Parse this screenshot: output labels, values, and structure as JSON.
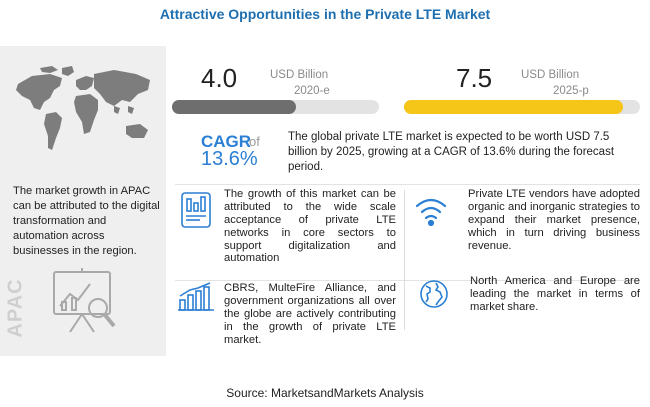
{
  "header": {
    "title": "Attractive Opportunities in the Private LTE Market"
  },
  "left": {
    "description": "The market growth in APAC can be attributed to the digital transformation and automation across businesses in the region.",
    "region_label": "APAC"
  },
  "value_2020": {
    "value": "4.0",
    "unit": "USD Billion",
    "period": "2020-e",
    "bar_fill_fraction": 0.6,
    "bar_color": "#6e6e6e"
  },
  "value_2025": {
    "value": "7.5",
    "unit": "USD Billion",
    "period": "2025-p",
    "bar_fill_fraction": 0.93,
    "bar_color": "#f5c518"
  },
  "cagr": {
    "label": "CAGR",
    "of": "of",
    "value": "13.6%",
    "summary": "The global private LTE market is expected to be worth USD 7.5 billion by 2025, growing at a CAGR of 13.6% during the forecast period."
  },
  "points": [
    {
      "icon": "chart-tablet-icon",
      "text": "The growth of this market can be attributed to the wide scale acceptance of private LTE networks in core sectors to support digitalization and automation"
    },
    {
      "icon": "wifi-icon",
      "text": "Private LTE vendors have adopted organic and inorganic strategies to expand their market presence, which in turn driving  business revenue."
    },
    {
      "icon": "growth-chart-icon",
      "text": "CBRS, MulteFire Alliance, and government organizations all over the globe are actively contributing in the growth of private LTE market."
    },
    {
      "icon": "globe-icon",
      "text": "North America and Europe are leading the market in terms of market share."
    }
  ],
  "footer": {
    "source": "Source: MarketsandMarkets Analysis"
  },
  "colors": {
    "title": "#1e6fb0",
    "cagr": "#2b7fd4",
    "panel": "#efefef"
  }
}
